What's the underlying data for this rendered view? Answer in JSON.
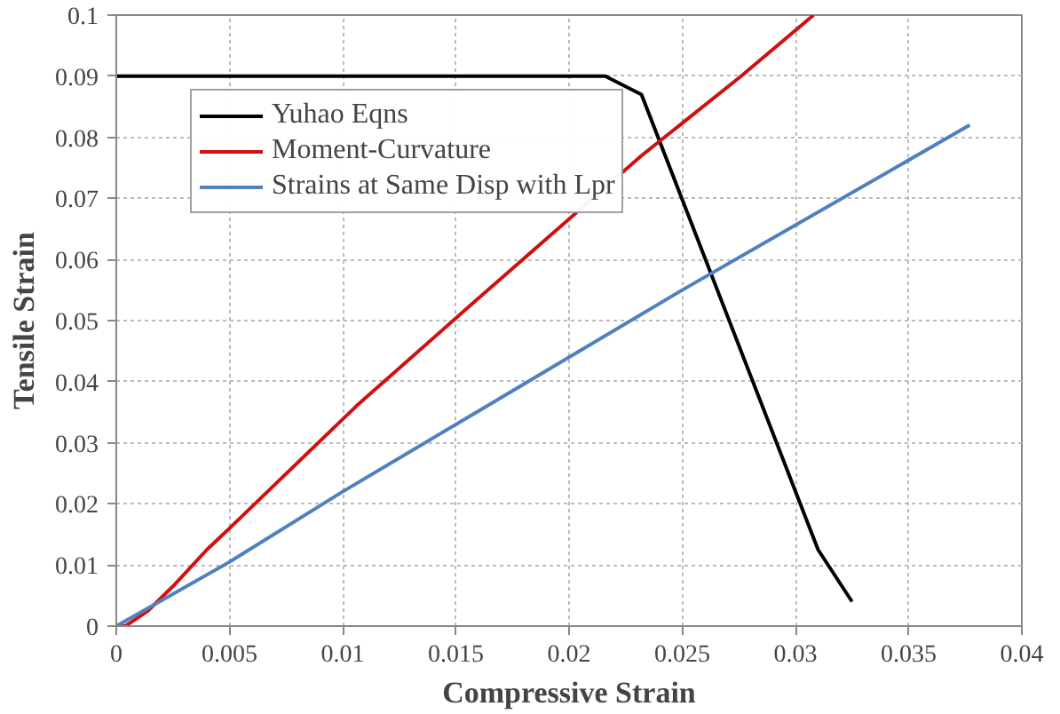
{
  "chart_data": {
    "type": "line",
    "xlabel": "Compressive Strain",
    "ylabel": "Tensile Strain",
    "xlim": [
      0,
      0.04
    ],
    "ylim": [
      0,
      0.1
    ],
    "xticks": [
      0,
      0.005,
      0.01,
      0.015,
      0.02,
      0.025,
      0.03,
      0.035,
      0.04
    ],
    "yticks": [
      0,
      0.01,
      0.02,
      0.03,
      0.04,
      0.05,
      0.06,
      0.07,
      0.08,
      0.09,
      0.1
    ],
    "grid": true,
    "legend": "top left",
    "marker": "none",
    "line_style": "solid",
    "series": [
      {
        "name": "Yuhao Eqns",
        "color": "#000000",
        "x": [
          0,
          0.0216,
          0.0232,
          0.031,
          0.0325
        ],
        "values": [
          0.09,
          0.09,
          0.087,
          0.0125,
          0.004
        ]
      },
      {
        "name": "Moment-Curvature",
        "color": "#d01010",
        "x": [
          0,
          0.0004,
          0.0014,
          0.0025,
          0.004,
          0.005,
          0.0106,
          0.0158,
          0.0232,
          0.0276,
          0.0308
        ],
        "values": [
          0,
          0,
          0.0025,
          0.0065,
          0.0125,
          0.016,
          0.036,
          0.053,
          0.077,
          0.09,
          0.1
        ]
      },
      {
        "name": "Strains at Same Disp with Lpr",
        "color": "#4f81bd",
        "x": [
          0,
          0.005,
          0.01,
          0.015,
          0.02,
          0.025,
          0.0377
        ],
        "values": [
          0,
          0.0105,
          0.022,
          0.033,
          0.044,
          0.055,
          0.082
        ]
      }
    ]
  }
}
